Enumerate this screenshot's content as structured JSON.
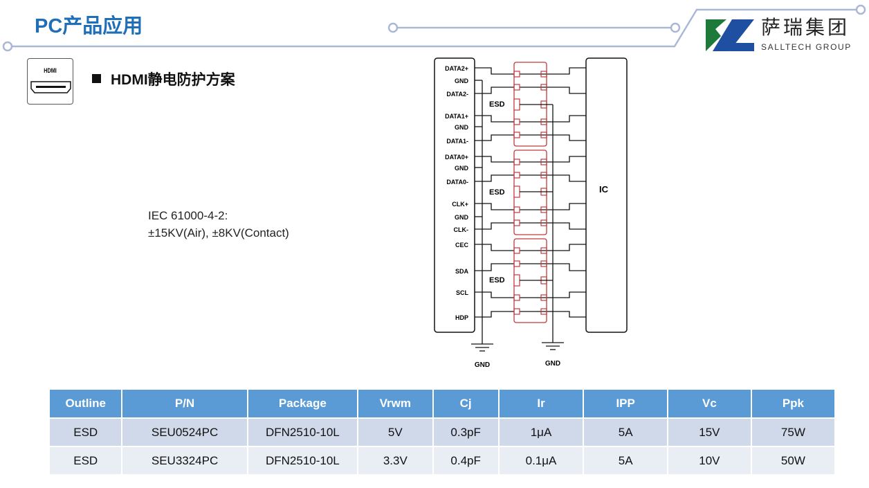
{
  "header": {
    "title": "PC产品应用"
  },
  "logo": {
    "name_cn": "萨瑞集团",
    "name_en": "SALLTECH GROUP",
    "colors": {
      "green": "#1e7a3a",
      "blue": "#1f4fa0"
    }
  },
  "section": {
    "icon_label": "HDMI",
    "title": "HDMI静电防护方案"
  },
  "spec": {
    "line1": "IEC 61000-4-2:",
    "line2": "±15KV(Air), ±8KV(Contact)"
  },
  "diagram": {
    "pins": [
      "DATA2+",
      "GND",
      "DATA2-",
      "DATA1+",
      "GND",
      "DATA1-",
      "DATA0+",
      "GND",
      "DATA0-",
      "CLK+",
      "GND",
      "CLK-",
      "CEC",
      "SDA",
      "SCL",
      "HDP"
    ],
    "esd_label": "ESD",
    "ic_label": "IC",
    "gnd_label": "GND",
    "colors": {
      "wire": "#111111",
      "esd": "#c0393f"
    }
  },
  "table": {
    "headers": [
      "Outline",
      "P/N",
      "Package",
      "Vrwm",
      "Cj",
      "Ir",
      "IPP",
      "Vc",
      "Ppk"
    ],
    "rows": [
      [
        "ESD",
        "SEU0524PC",
        "DFN2510-10L",
        "5V",
        "0.3pF",
        "1μA",
        "5A",
        "15V",
        "75W"
      ],
      [
        "ESD",
        "SEU3324PC",
        "DFN2510-10L",
        "3.3V",
        "0.4pF",
        "0.1μA",
        "5A",
        "10V",
        "50W"
      ]
    ],
    "colors": {
      "header": "#5b9bd5",
      "row_a": "#d0d9ea",
      "row_b": "#e9edf4"
    }
  }
}
